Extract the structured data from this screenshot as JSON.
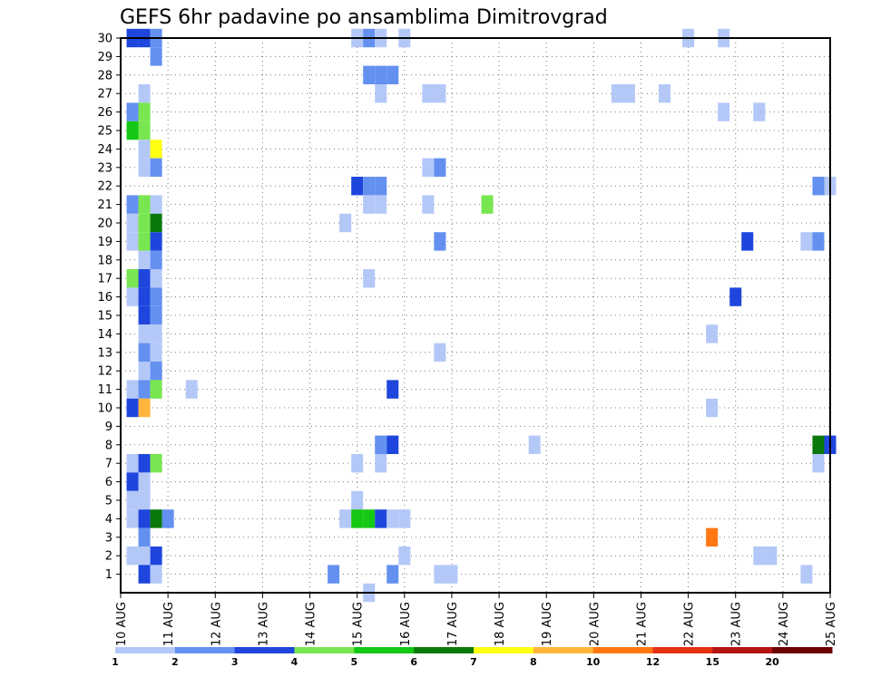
{
  "chart_data": {
    "type": "heatmap",
    "title": "GEFS 6hr padavine po ansamblima Dimitrovgrad",
    "x_tick_labels": [
      "10 AUG",
      "11 AUG",
      "12 AUG",
      "13 AUG",
      "14 AUG",
      "15 AUG",
      "16 AUG",
      "17 AUG",
      "18 AUG",
      "19 AUG",
      "20 AUG",
      "21 AUG",
      "22 AUG",
      "23 AUG",
      "24 AUG",
      "25 AUG"
    ],
    "y_tick_labels": [
      "1",
      "2",
      "3",
      "4",
      "5",
      "6",
      "7",
      "8",
      "9",
      "10",
      "11",
      "12",
      "13",
      "14",
      "15",
      "16",
      "17",
      "18",
      "19",
      "20",
      "21",
      "22",
      "23",
      "24",
      "25",
      "26",
      "27",
      "28",
      "29",
      "30"
    ],
    "xlim_days": [
      10,
      25
    ],
    "ylim_members": [
      0,
      30
    ],
    "grid": "dotted",
    "colorbar": {
      "boundaries": [
        "1",
        "2",
        "3",
        "4",
        "5",
        "6",
        "7",
        "8",
        "10",
        "12",
        "15",
        "20"
      ],
      "colors": [
        "#b4c8f8",
        "#6490f0",
        "#1e46dc",
        "#78e650",
        "#14c814",
        "#0a780a",
        "#ffff14",
        "#ffb43c",
        "#ff7814",
        "#e63214",
        "#b41414",
        "#6e0000"
      ]
    },
    "cells": [
      {
        "member": 30,
        "time": "10 AUG 06",
        "bin": 3
      },
      {
        "member": 30,
        "time": "10 AUG 12",
        "bin": 3
      },
      {
        "member": 30,
        "time": "10 AUG 18",
        "bin": 2
      },
      {
        "member": 30,
        "time": "15 AUG 00",
        "bin": 1
      },
      {
        "member": 30,
        "time": "15 AUG 06",
        "bin": 2
      },
      {
        "member": 30,
        "time": "15 AUG 12",
        "bin": 1
      },
      {
        "member": 30,
        "time": "16 AUG 00",
        "bin": 1
      },
      {
        "member": 30,
        "time": "22 AUG 00",
        "bin": 1
      },
      {
        "member": 30,
        "time": "22 AUG 18",
        "bin": 1
      },
      {
        "member": 29,
        "time": "10 AUG 18",
        "bin": 2
      },
      {
        "member": 28,
        "time": "15 AUG 06",
        "bin": 2
      },
      {
        "member": 28,
        "time": "15 AUG 12",
        "bin": 2
      },
      {
        "member": 28,
        "time": "15 AUG 18",
        "bin": 2
      },
      {
        "member": 27,
        "time": "10 AUG 12",
        "bin": 1
      },
      {
        "member": 27,
        "time": "15 AUG 12",
        "bin": 1
      },
      {
        "member": 27,
        "time": "16 AUG 12",
        "bin": 1
      },
      {
        "member": 27,
        "time": "16 AUG 18",
        "bin": 1
      },
      {
        "member": 27,
        "time": "20 AUG 12",
        "bin": 1
      },
      {
        "member": 27,
        "time": "20 AUG 18",
        "bin": 1
      },
      {
        "member": 27,
        "time": "21 AUG 12",
        "bin": 1
      },
      {
        "member": 26,
        "time": "10 AUG 06",
        "bin": 2
      },
      {
        "member": 26,
        "time": "10 AUG 12",
        "bin": 4
      },
      {
        "member": 26,
        "time": "22 AUG 18",
        "bin": 1
      },
      {
        "member": 26,
        "time": "23 AUG 12",
        "bin": 1
      },
      {
        "member": 25,
        "time": "10 AUG 06",
        "bin": 5
      },
      {
        "member": 25,
        "time": "10 AUG 12",
        "bin": 4
      },
      {
        "member": 24,
        "time": "10 AUG 12",
        "bin": 1
      },
      {
        "member": 24,
        "time": "10 AUG 18",
        "bin": 7
      },
      {
        "member": 23,
        "time": "10 AUG 12",
        "bin": 1
      },
      {
        "member": 23,
        "time": "10 AUG 18",
        "bin": 2
      },
      {
        "member": 23,
        "time": "16 AUG 12",
        "bin": 1
      },
      {
        "member": 23,
        "time": "16 AUG 18",
        "bin": 2
      },
      {
        "member": 22,
        "time": "15 AUG 00",
        "bin": 3
      },
      {
        "member": 22,
        "time": "15 AUG 06",
        "bin": 2
      },
      {
        "member": 22,
        "time": "15 AUG 12",
        "bin": 2
      },
      {
        "member": 22,
        "time": "24 AUG 18",
        "bin": 2
      },
      {
        "member": 22,
        "time": "25 AUG 00",
        "bin": 1
      },
      {
        "member": 21,
        "time": "10 AUG 06",
        "bin": 2
      },
      {
        "member": 21,
        "time": "10 AUG 12",
        "bin": 4
      },
      {
        "member": 21,
        "time": "10 AUG 18",
        "bin": 1
      },
      {
        "member": 21,
        "time": "15 AUG 06",
        "bin": 1
      },
      {
        "member": 21,
        "time": "15 AUG 12",
        "bin": 1
      },
      {
        "member": 21,
        "time": "16 AUG 12",
        "bin": 1
      },
      {
        "member": 21,
        "time": "17 AUG 18",
        "bin": 4
      },
      {
        "member": 20,
        "time": "10 AUG 06",
        "bin": 1
      },
      {
        "member": 20,
        "time": "10 AUG 12",
        "bin": 4
      },
      {
        "member": 20,
        "time": "10 AUG 18",
        "bin": 6
      },
      {
        "member": 20,
        "time": "14 AUG 18",
        "bin": 1
      },
      {
        "member": 19,
        "time": "10 AUG 06",
        "bin": 1
      },
      {
        "member": 19,
        "time": "10 AUG 12",
        "bin": 4
      },
      {
        "member": 19,
        "time": "10 AUG 18",
        "bin": 3
      },
      {
        "member": 19,
        "time": "16 AUG 18",
        "bin": 2
      },
      {
        "member": 19,
        "time": "23 AUG 06",
        "bin": 3
      },
      {
        "member": 19,
        "time": "24 AUG 12",
        "bin": 1
      },
      {
        "member": 19,
        "time": "24 AUG 18",
        "bin": 2
      },
      {
        "member": 18,
        "time": "10 AUG 12",
        "bin": 1
      },
      {
        "member": 18,
        "time": "10 AUG 18",
        "bin": 2
      },
      {
        "member": 17,
        "time": "10 AUG 06",
        "bin": 4
      },
      {
        "member": 17,
        "time": "10 AUG 12",
        "bin": 3
      },
      {
        "member": 17,
        "time": "10 AUG 18",
        "bin": 1
      },
      {
        "member": 17,
        "time": "15 AUG 06",
        "bin": 1
      },
      {
        "member": 16,
        "time": "10 AUG 06",
        "bin": 1
      },
      {
        "member": 16,
        "time": "10 AUG 12",
        "bin": 3
      },
      {
        "member": 16,
        "time": "10 AUG 18",
        "bin": 2
      },
      {
        "member": 16,
        "time": "23 AUG 00",
        "bin": 3
      },
      {
        "member": 15,
        "time": "10 AUG 12",
        "bin": 3
      },
      {
        "member": 15,
        "time": "10 AUG 18",
        "bin": 2
      },
      {
        "member": 14,
        "time": "10 AUG 12",
        "bin": 1
      },
      {
        "member": 14,
        "time": "10 AUG 18",
        "bin": 1
      },
      {
        "member": 14,
        "time": "22 AUG 12",
        "bin": 1
      },
      {
        "member": 13,
        "time": "10 AUG 12",
        "bin": 2
      },
      {
        "member": 13,
        "time": "10 AUG 18",
        "bin": 1
      },
      {
        "member": 13,
        "time": "16 AUG 18",
        "bin": 1
      },
      {
        "member": 12,
        "time": "10 AUG 12",
        "bin": 1
      },
      {
        "member": 12,
        "time": "10 AUG 18",
        "bin": 2
      },
      {
        "member": 11,
        "time": "10 AUG 06",
        "bin": 1
      },
      {
        "member": 11,
        "time": "10 AUG 12",
        "bin": 2
      },
      {
        "member": 11,
        "time": "10 AUG 18",
        "bin": 4
      },
      {
        "member": 11,
        "time": "11 AUG 12",
        "bin": 1
      },
      {
        "member": 11,
        "time": "15 AUG 18",
        "bin": 3
      },
      {
        "member": 10,
        "time": "10 AUG 06",
        "bin": 3
      },
      {
        "member": 10,
        "time": "10 AUG 12",
        "bin": 8
      },
      {
        "member": 10,
        "time": "22 AUG 12",
        "bin": 1
      },
      {
        "member": 8,
        "time": "15 AUG 12",
        "bin": 2
      },
      {
        "member": 8,
        "time": "15 AUG 18",
        "bin": 3
      },
      {
        "member": 8,
        "time": "18 AUG 18",
        "bin": 1
      },
      {
        "member": 8,
        "time": "24 AUG 18",
        "bin": 6
      },
      {
        "member": 8,
        "time": "25 AUG 00",
        "bin": 3
      },
      {
        "member": 7,
        "time": "10 AUG 06",
        "bin": 1
      },
      {
        "member": 7,
        "time": "10 AUG 12",
        "bin": 3
      },
      {
        "member": 7,
        "time": "10 AUG 18",
        "bin": 4
      },
      {
        "member": 7,
        "time": "15 AUG 00",
        "bin": 1
      },
      {
        "member": 7,
        "time": "15 AUG 12",
        "bin": 1
      },
      {
        "member": 7,
        "time": "24 AUG 18",
        "bin": 1
      },
      {
        "member": 6,
        "time": "10 AUG 06",
        "bin": 3
      },
      {
        "member": 6,
        "time": "10 AUG 12",
        "bin": 1
      },
      {
        "member": 5,
        "time": "10 AUG 06",
        "bin": 1
      },
      {
        "member": 5,
        "time": "10 AUG 12",
        "bin": 1
      },
      {
        "member": 5,
        "time": "15 AUG 00",
        "bin": 1
      },
      {
        "member": 4,
        "time": "10 AUG 06",
        "bin": 1
      },
      {
        "member": 4,
        "time": "10 AUG 12",
        "bin": 3
      },
      {
        "member": 4,
        "time": "10 AUG 18",
        "bin": 6
      },
      {
        "member": 4,
        "time": "11 AUG 00",
        "bin": 2
      },
      {
        "member": 4,
        "time": "14 AUG 18",
        "bin": 1
      },
      {
        "member": 4,
        "time": "15 AUG 00",
        "bin": 5
      },
      {
        "member": 4,
        "time": "15 AUG 06",
        "bin": 5
      },
      {
        "member": 4,
        "time": "15 AUG 12",
        "bin": 3
      },
      {
        "member": 4,
        "time": "15 AUG 18",
        "bin": 1
      },
      {
        "member": 4,
        "time": "16 AUG 00",
        "bin": 1
      },
      {
        "member": 3,
        "time": "10 AUG 12",
        "bin": 2
      },
      {
        "member": 3,
        "time": "22 AUG 12",
        "bin": 9
      },
      {
        "member": 2,
        "time": "10 AUG 06",
        "bin": 1
      },
      {
        "member": 2,
        "time": "10 AUG 12",
        "bin": 1
      },
      {
        "member": 2,
        "time": "10 AUG 18",
        "bin": 3
      },
      {
        "member": 2,
        "time": "16 AUG 00",
        "bin": 1
      },
      {
        "member": 2,
        "time": "23 AUG 12",
        "bin": 1
      },
      {
        "member": 2,
        "time": "23 AUG 18",
        "bin": 1
      },
      {
        "member": 1,
        "time": "10 AUG 12",
        "bin": 3
      },
      {
        "member": 1,
        "time": "10 AUG 18",
        "bin": 1
      },
      {
        "member": 1,
        "time": "14 AUG 12",
        "bin": 2
      },
      {
        "member": 1,
        "time": "15 AUG 18",
        "bin": 2
      },
      {
        "member": 1,
        "time": "16 AUG 18",
        "bin": 1
      },
      {
        "member": 1,
        "time": "17 AUG 00",
        "bin": 1
      },
      {
        "member": 1,
        "time": "24 AUG 12",
        "bin": 1
      },
      {
        "member": 0,
        "time": "15 AUG 06",
        "bin": 1
      }
    ]
  }
}
